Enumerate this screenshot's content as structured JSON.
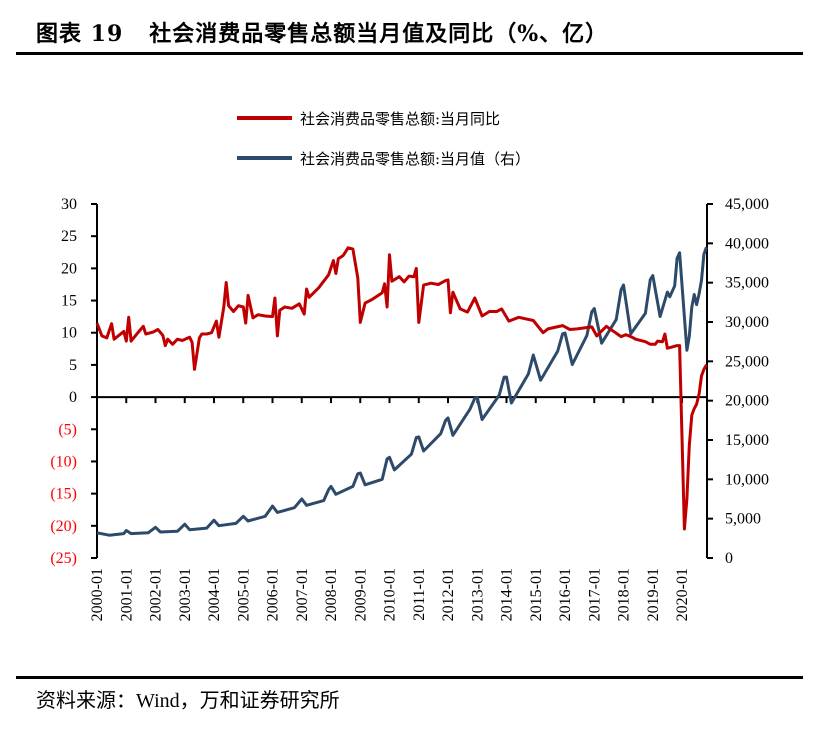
{
  "title": "图表 19   社会消费品零售总额当月值及同比（%、亿）",
  "source": "资料来源：Wind，万和证券研究所",
  "chart_data": {
    "type": "line",
    "title": "图表 19   社会消费品零售总额当月值及同比（%、亿）",
    "legend_placement": "top-center",
    "grid": false,
    "x_range": [
      "2000-01",
      "2020-11"
    ],
    "x_tick_labels": [
      "2000-01",
      "2001-01",
      "2002-01",
      "2003-01",
      "2004-01",
      "2005-01",
      "2006-01",
      "2007-01",
      "2008-01",
      "2009-01",
      "2010-01",
      "2011-01",
      "2012-01",
      "2013-01",
      "2014-01",
      "2015-01",
      "2016-01",
      "2017-01",
      "2018-01",
      "2019-01",
      "2020-01"
    ],
    "y_left": {
      "range": [
        -25,
        30
      ],
      "tick_labels": [
        "30",
        "25",
        "20",
        "15",
        "10",
        "5",
        "0",
        "(5)",
        "(10)",
        "(15)",
        "(20)",
        "(25)"
      ],
      "tick_values": [
        30,
        25,
        20,
        15,
        10,
        5,
        0,
        -5,
        -10,
        -15,
        -20,
        -25
      ],
      "negative_label_color": "#ff0000"
    },
    "y_right": {
      "range": [
        0,
        45000
      ],
      "tick_labels": [
        "45,000",
        "40,000",
        "35,000",
        "30,000",
        "25,000",
        "20,000",
        "15,000",
        "10,000",
        "5,000",
        "0"
      ],
      "tick_values": [
        45000,
        40000,
        35000,
        30000,
        25000,
        20000,
        15000,
        10000,
        5000,
        0
      ]
    },
    "series": [
      {
        "name": "社会消费品零售总额:当月同比",
        "axis": "left",
        "color": "#c00000",
        "points": [
          [
            "2000-01",
            11.5
          ],
          [
            "2000-03",
            9.5
          ],
          [
            "2000-05",
            9.2
          ],
          [
            "2000-07",
            11.4
          ],
          [
            "2000-08",
            9.0
          ],
          [
            "2000-12",
            10.2
          ],
          [
            "2001-01",
            8.7
          ],
          [
            "2001-02",
            12.4
          ],
          [
            "2001-03",
            8.7
          ],
          [
            "2001-06",
            10.1
          ],
          [
            "2001-08",
            11.0
          ],
          [
            "2001-09",
            9.8
          ],
          [
            "2001-12",
            10.1
          ],
          [
            "2002-02",
            10.5
          ],
          [
            "2002-04",
            9.6
          ],
          [
            "2002-05",
            8.0
          ],
          [
            "2002-06",
            9.0
          ],
          [
            "2002-08",
            8.2
          ],
          [
            "2002-10",
            9.0
          ],
          [
            "2002-12",
            8.8
          ],
          [
            "2003-03",
            9.3
          ],
          [
            "2003-04",
            8.5
          ],
          [
            "2003-05",
            4.3
          ],
          [
            "2003-07",
            9.2
          ],
          [
            "2003-08",
            9.8
          ],
          [
            "2003-10",
            9.8
          ],
          [
            "2003-12",
            10.0
          ],
          [
            "2004-02",
            11.8
          ],
          [
            "2004-03",
            9.3
          ],
          [
            "2004-05",
            14.0
          ],
          [
            "2004-06",
            17.8
          ],
          [
            "2004-07",
            14.2
          ],
          [
            "2004-09",
            13.3
          ],
          [
            "2004-11",
            14.2
          ],
          [
            "2005-01",
            14.0
          ],
          [
            "2005-02",
            11.5
          ],
          [
            "2005-03",
            15.8
          ],
          [
            "2005-05",
            12.3
          ],
          [
            "2005-07",
            12.8
          ],
          [
            "2005-10",
            12.6
          ],
          [
            "2006-01",
            12.5
          ],
          [
            "2006-02",
            15.4
          ],
          [
            "2006-03",
            9.5
          ],
          [
            "2006-04",
            13.5
          ],
          [
            "2006-06",
            14.0
          ],
          [
            "2006-09",
            13.8
          ],
          [
            "2006-12",
            14.5
          ],
          [
            "2007-02",
            12.9
          ],
          [
            "2007-03",
            16.8
          ],
          [
            "2007-04",
            15.5
          ],
          [
            "2007-08",
            17.0
          ],
          [
            "2007-12",
            19.0
          ],
          [
            "2008-02",
            21.2
          ],
          [
            "2008-03",
            19.2
          ],
          [
            "2008-04",
            21.5
          ],
          [
            "2008-06",
            22.0
          ],
          [
            "2008-08",
            23.2
          ],
          [
            "2008-10",
            23.0
          ],
          [
            "2008-12",
            18.5
          ],
          [
            "2009-01",
            11.6
          ],
          [
            "2009-03",
            14.6
          ],
          [
            "2009-06",
            15.2
          ],
          [
            "2009-10",
            16.2
          ],
          [
            "2009-11",
            17.6
          ],
          [
            "2009-12",
            14.0
          ],
          [
            "2010-01",
            22.1
          ],
          [
            "2010-02",
            18.0
          ],
          [
            "2010-05",
            18.7
          ],
          [
            "2010-07",
            17.9
          ],
          [
            "2010-09",
            18.8
          ],
          [
            "2010-11",
            18.7
          ],
          [
            "2010-12",
            20.0
          ],
          [
            "2011-01",
            11.6
          ],
          [
            "2011-03",
            17.4
          ],
          [
            "2011-06",
            17.7
          ],
          [
            "2011-09",
            17.5
          ],
          [
            "2011-12",
            18.1
          ],
          [
            "2012-01",
            18.2
          ],
          [
            "2012-02",
            13.1
          ],
          [
            "2012-03",
            16.3
          ],
          [
            "2012-06",
            13.7
          ],
          [
            "2012-09",
            13.2
          ],
          [
            "2012-12",
            15.4
          ],
          [
            "2013-03",
            12.6
          ],
          [
            "2013-06",
            13.3
          ],
          [
            "2013-09",
            13.3
          ],
          [
            "2013-11",
            13.7
          ],
          [
            "2014-02",
            11.8
          ],
          [
            "2014-06",
            12.4
          ],
          [
            "2014-12",
            11.9
          ],
          [
            "2015-04",
            10.0
          ],
          [
            "2015-06",
            10.6
          ],
          [
            "2015-12",
            11.1
          ],
          [
            "2016-03",
            10.5
          ],
          [
            "2016-06",
            10.6
          ],
          [
            "2016-12",
            10.9
          ],
          [
            "2017-02",
            9.5
          ],
          [
            "2017-06",
            11.0
          ],
          [
            "2017-12",
            9.4
          ],
          [
            "2018-02",
            9.7
          ],
          [
            "2018-04",
            9.4
          ],
          [
            "2018-06",
            9.0
          ],
          [
            "2018-10",
            8.6
          ],
          [
            "2018-12",
            8.2
          ],
          [
            "2019-02",
            8.2
          ],
          [
            "2019-03",
            8.7
          ],
          [
            "2019-05",
            8.6
          ],
          [
            "2019-06",
            9.8
          ],
          [
            "2019-07",
            7.6
          ],
          [
            "2019-09",
            7.8
          ],
          [
            "2019-11",
            8.0
          ],
          [
            "2019-12",
            8.0
          ],
          [
            "2020-02",
            -20.5
          ],
          [
            "2020-03",
            -15.8
          ],
          [
            "2020-04",
            -7.5
          ],
          [
            "2020-05",
            -2.8
          ],
          [
            "2020-06",
            -1.8
          ],
          [
            "2020-07",
            -1.1
          ],
          [
            "2020-08",
            0.5
          ],
          [
            "2020-09",
            3.3
          ],
          [
            "2020-10",
            4.3
          ],
          [
            "2020-11",
            5.0
          ]
        ]
      },
      {
        "name": "社会消费品零售总额:当月值（右）",
        "axis": "right",
        "color": "#2e4a6b",
        "points": [
          [
            "2000-01",
            3200
          ],
          [
            "2000-06",
            2900
          ],
          [
            "2000-12",
            3100
          ],
          [
            "2001-01",
            3500
          ],
          [
            "2001-03",
            3100
          ],
          [
            "2001-10",
            3200
          ],
          [
            "2002-01",
            3900
          ],
          [
            "2002-03",
            3300
          ],
          [
            "2002-10",
            3400
          ],
          [
            "2003-01",
            4300
          ],
          [
            "2003-03",
            3600
          ],
          [
            "2003-10",
            3800
          ],
          [
            "2004-01",
            4800
          ],
          [
            "2004-03",
            4100
          ],
          [
            "2004-10",
            4400
          ],
          [
            "2005-01",
            5300
          ],
          [
            "2005-03",
            4700
          ],
          [
            "2005-10",
            5300
          ],
          [
            "2006-01",
            6600
          ],
          [
            "2006-03",
            5800
          ],
          [
            "2006-10",
            6400
          ],
          [
            "2007-01",
            7500
          ],
          [
            "2007-03",
            6700
          ],
          [
            "2007-10",
            7300
          ],
          [
            "2007-12",
            8700
          ],
          [
            "2008-01",
            9100
          ],
          [
            "2008-03",
            8100
          ],
          [
            "2008-10",
            9100
          ],
          [
            "2008-12",
            10700
          ],
          [
            "2009-01",
            10800
          ],
          [
            "2009-03",
            9300
          ],
          [
            "2009-10",
            10000
          ],
          [
            "2009-12",
            12600
          ],
          [
            "2010-01",
            12800
          ],
          [
            "2010-03",
            11200
          ],
          [
            "2010-10",
            13200
          ],
          [
            "2010-12",
            15300
          ],
          [
            "2011-01",
            15400
          ],
          [
            "2011-03",
            13600
          ],
          [
            "2011-10",
            15800
          ],
          [
            "2011-12",
            17500
          ],
          [
            "2012-01",
            17800
          ],
          [
            "2012-03",
            15600
          ],
          [
            "2012-10",
            18900
          ],
          [
            "2012-12",
            20300
          ],
          [
            "2013-01",
            20400
          ],
          [
            "2013-03",
            17600
          ],
          [
            "2013-10",
            20700
          ],
          [
            "2013-12",
            23000
          ],
          [
            "2014-01",
            23000
          ],
          [
            "2014-03",
            19700
          ],
          [
            "2014-10",
            23400
          ],
          [
            "2014-12",
            25800
          ],
          [
            "2015-03",
            22600
          ],
          [
            "2015-10",
            26300
          ],
          [
            "2015-12",
            28500
          ],
          [
            "2016-01",
            28600
          ],
          [
            "2016-04",
            24600
          ],
          [
            "2016-10",
            28300
          ],
          [
            "2016-12",
            31300
          ],
          [
            "2017-01",
            31700
          ],
          [
            "2017-04",
            27300
          ],
          [
            "2017-10",
            30300
          ],
          [
            "2017-12",
            34100
          ],
          [
            "2018-01",
            34700
          ],
          [
            "2018-04",
            28500
          ],
          [
            "2018-10",
            31100
          ],
          [
            "2018-12",
            35400
          ],
          [
            "2019-01",
            35900
          ],
          [
            "2019-04",
            30700
          ],
          [
            "2019-07",
            33800
          ],
          [
            "2019-08",
            33200
          ],
          [
            "2019-10",
            34600
          ],
          [
            "2019-11",
            38100
          ],
          [
            "2019-12",
            38800
          ],
          [
            "2020-03",
            26400
          ],
          [
            "2020-04",
            28200
          ],
          [
            "2020-05",
            31900
          ],
          [
            "2020-06",
            33500
          ],
          [
            "2020-07",
            32200
          ],
          [
            "2020-08",
            33600
          ],
          [
            "2020-09",
            35300
          ],
          [
            "2020-10",
            38600
          ],
          [
            "2020-11",
            39500
          ]
        ]
      }
    ]
  }
}
